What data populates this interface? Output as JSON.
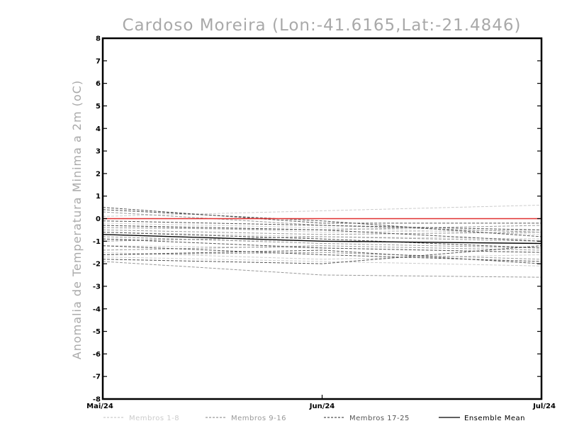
{
  "chart_data": {
    "type": "line",
    "title": "Cardoso Moreira (Lon:-41.6165,Lat:-21.4846)",
    "ylabel": "Anomalia de Temperatura Minima a 2m (oC)",
    "xlabel": "",
    "categories": [
      "Mai/24",
      "Jun/24",
      "Jul/24"
    ],
    "ylim": [
      -8,
      8
    ],
    "yticks": [
      "8",
      "7",
      "6",
      "5",
      "4",
      "3",
      "2",
      "1",
      "0",
      "-1",
      "-2",
      "-3",
      "-4",
      "-5",
      "-6",
      "-7",
      "-8"
    ],
    "colors": {
      "members_1_8": "#cccccc",
      "members_9_16": "#999999",
      "members_17_25": "#555555",
      "ensemble_mean": "#000000",
      "zero_line": "#e03030",
      "title": "#a9a9a9"
    },
    "legend": [
      {
        "label": "Membros 1-8",
        "group": "members_1_8"
      },
      {
        "label": "Membros 9-16",
        "group": "members_9_16"
      },
      {
        "label": "Membros 17-25",
        "group": "members_17_25"
      },
      {
        "label": "Ensemble Mean",
        "group": "ensemble_mean"
      }
    ],
    "series": [
      {
        "group": "members_1_8",
        "values": [
          0.1,
          0.35,
          0.6
        ]
      },
      {
        "group": "members_1_8",
        "values": [
          -0.3,
          -0.6,
          -0.5
        ]
      },
      {
        "group": "members_1_8",
        "values": [
          -0.6,
          -0.8,
          -0.9
        ]
      },
      {
        "group": "members_1_8",
        "values": [
          -0.9,
          -1.0,
          -1.1
        ]
      },
      {
        "group": "members_1_8",
        "values": [
          -1.2,
          -1.3,
          -1.5
        ]
      },
      {
        "group": "members_1_8",
        "values": [
          -1.5,
          -1.8,
          -1.6
        ]
      },
      {
        "group": "members_1_8",
        "values": [
          -1.7,
          -1.9,
          -2.1
        ]
      },
      {
        "group": "members_1_8",
        "values": [
          -0.2,
          -0.4,
          -0.7
        ]
      },
      {
        "group": "members_9_16",
        "values": [
          0.3,
          -0.3,
          -0.6
        ]
      },
      {
        "group": "members_9_16",
        "values": [
          -0.5,
          -0.7,
          -0.6
        ]
      },
      {
        "group": "members_9_16",
        "values": [
          -0.8,
          -1.1,
          -1.3
        ]
      },
      {
        "group": "members_9_16",
        "values": [
          -1.0,
          -0.8,
          -1.0
        ]
      },
      {
        "group": "members_9_16",
        "values": [
          -1.4,
          -1.2,
          -1.4
        ]
      },
      {
        "group": "members_9_16",
        "values": [
          -1.6,
          -1.5,
          -1.8
        ]
      },
      {
        "group": "members_9_16",
        "values": [
          -1.9,
          -2.5,
          -2.6
        ]
      },
      {
        "group": "members_9_16",
        "values": [
          -0.4,
          -0.5,
          -0.3
        ]
      },
      {
        "group": "members_17_25",
        "values": [
          0.5,
          -0.2,
          -0.2
        ]
      },
      {
        "group": "members_17_25",
        "values": [
          0.4,
          -0.1,
          -0.8
        ]
      },
      {
        "group": "members_17_25",
        "values": [
          -0.1,
          -0.3,
          -0.5
        ]
      },
      {
        "group": "members_17_25",
        "values": [
          -0.3,
          -0.5,
          -1.0
        ]
      },
      {
        "group": "members_17_25",
        "values": [
          -0.6,
          -0.9,
          -1.3
        ]
      },
      {
        "group": "members_17_25",
        "values": [
          -0.9,
          -1.3,
          -1.5
        ]
      },
      {
        "group": "members_17_25",
        "values": [
          -1.2,
          -1.6,
          -1.9
        ]
      },
      {
        "group": "members_17_25",
        "values": [
          -1.6,
          -1.4,
          -2.0
        ]
      },
      {
        "group": "members_17_25",
        "values": [
          -1.8,
          -2.0,
          -1.2
        ]
      },
      {
        "group": "ensemble_mean",
        "values": [
          -0.7,
          -1.0,
          -1.1
        ]
      },
      {
        "group": "zero_line",
        "values": [
          0.0,
          0.0,
          0.0
        ]
      }
    ]
  }
}
